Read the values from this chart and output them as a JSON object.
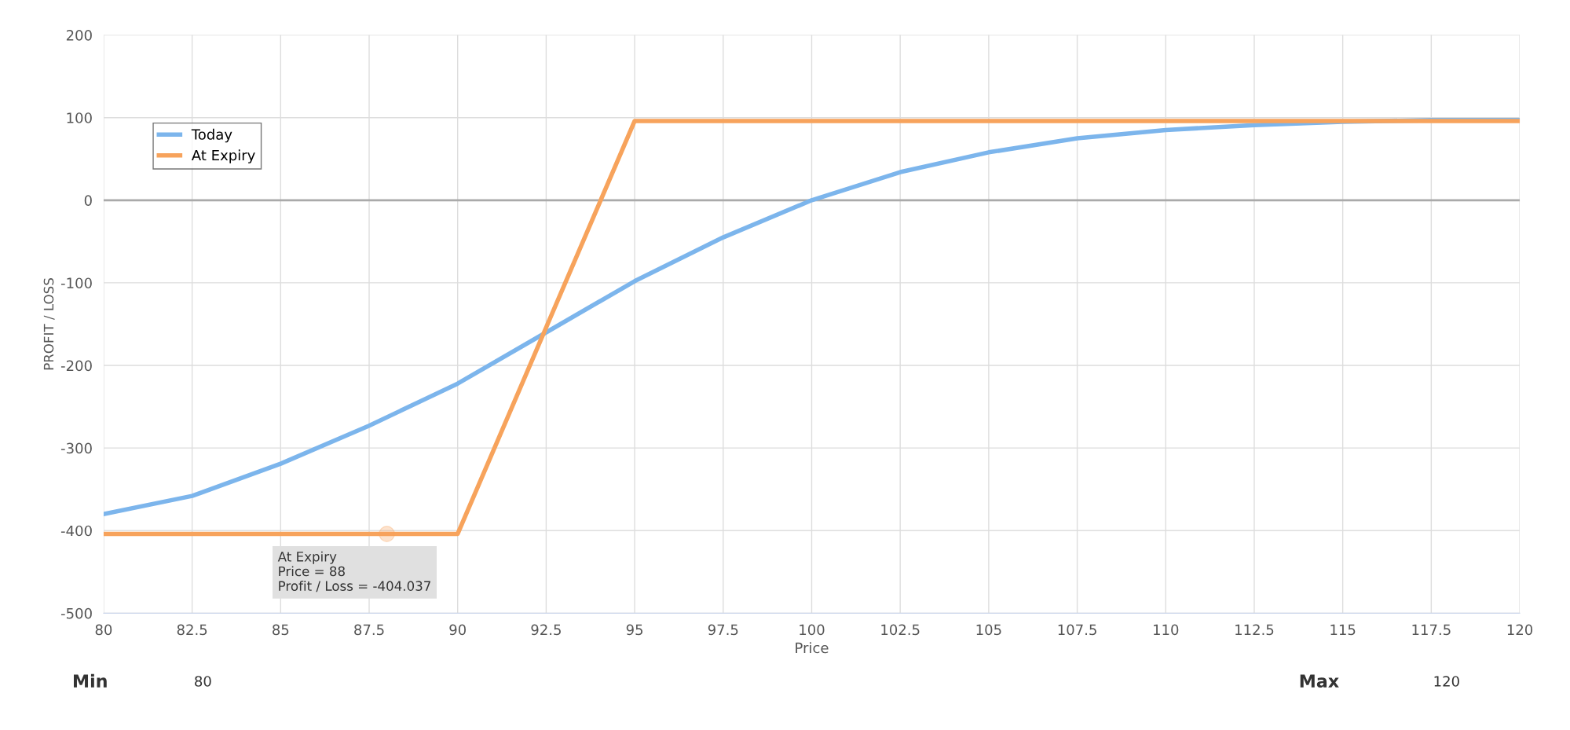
{
  "chart_data": {
    "type": "line",
    "xlabel": "Price",
    "ylabel": "PROFIT / LOSS",
    "x": [
      80,
      82.5,
      85,
      87.5,
      90,
      92.5,
      95,
      97.5,
      100,
      102.5,
      105,
      107.5,
      110,
      112.5,
      115,
      117.5,
      120
    ],
    "series": [
      {
        "name": "Today",
        "color": "#7cb5ec",
        "values": [
          -380,
          -358,
          -319,
          -273,
          -222,
          -160,
          -98,
          -45,
          0,
          34,
          58,
          75,
          85,
          91,
          95,
          97,
          97
        ]
      },
      {
        "name": "At Expiry",
        "color": "#f7a35c",
        "x": [
          80,
          90,
          95,
          120
        ],
        "values": [
          -404,
          -404,
          96,
          96
        ]
      }
    ],
    "xlim": [
      80,
      120
    ],
    "ylim": [
      -500,
      200
    ],
    "xticks": [
      80,
      82.5,
      85,
      87.5,
      90,
      92.5,
      95,
      97.5,
      100,
      102.5,
      105,
      107.5,
      110,
      112.5,
      115,
      117.5,
      120
    ],
    "yticks": [
      -500,
      -400,
      -300,
      -200,
      -100,
      0,
      100,
      200
    ],
    "ref_lines": [
      {
        "axis": "y",
        "value": 0,
        "color": "#aaaaaa"
      }
    ],
    "annotations": [
      {
        "text": "At Expiry\nPrice = 88\nProfit / Loss = -404.037",
        "x": 88,
        "y": -404.037
      },
      "Min",
      "80",
      "Max",
      "120"
    ],
    "grid": true,
    "legend": "top left",
    "marker": "none",
    "line_style": "solid"
  }
}
